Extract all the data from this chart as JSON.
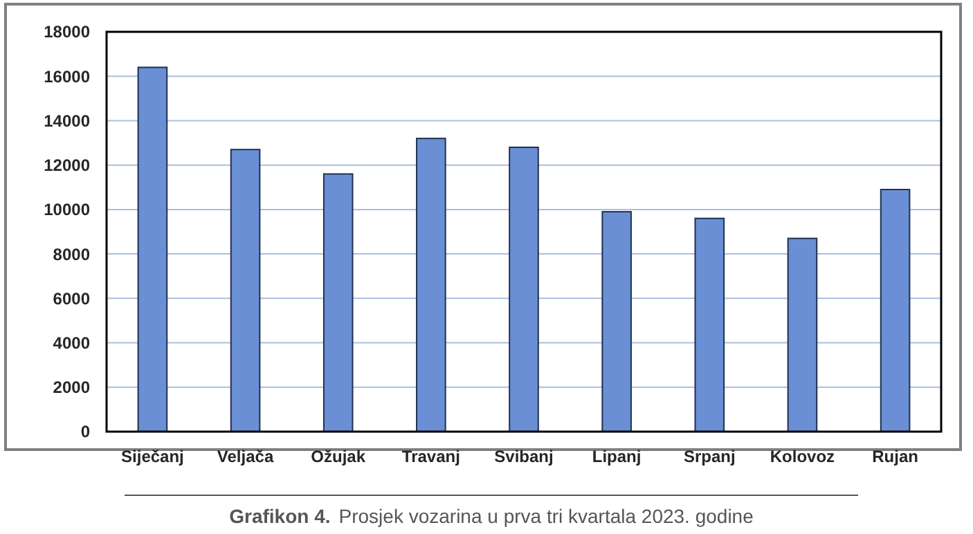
{
  "chart_data": {
    "type": "bar",
    "title": "Grafikon 4.",
    "subtitle": "Prosjek vozarina u prva tri kvartala 2023. godine",
    "categories": [
      "Siječanj",
      "Veljača",
      "Ožujak",
      "Travanj",
      "Svibanj",
      "Lipanj",
      "Srpanj",
      "Kolovoz",
      "Rujan"
    ],
    "values": [
      16400,
      12700,
      11600,
      13200,
      12800,
      9900,
      9600,
      8700,
      10900
    ],
    "color": "#6a8fd4",
    "ylim": [
      0,
      18000
    ],
    "yticks": [
      0,
      2000,
      4000,
      6000,
      8000,
      10000,
      12000,
      14000,
      16000,
      18000
    ],
    "grid": "y"
  }
}
